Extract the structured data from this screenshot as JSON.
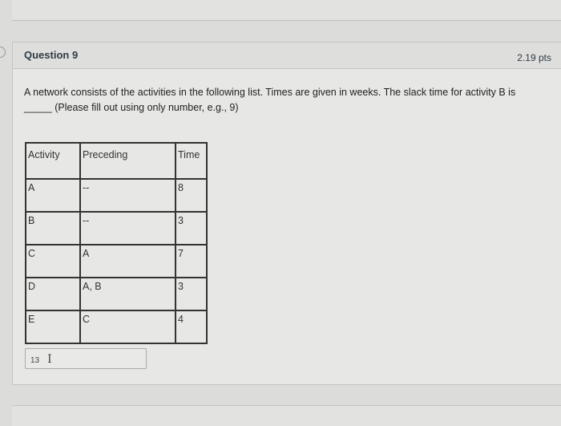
{
  "question": {
    "title": "Question 9",
    "points": "2.19 pts",
    "text_line1": "A network consists of the activities in the following list. Times are given in weeks. The slack time for activity B is",
    "text_line2": "_____ (Please fill out using only number, e.g., 9)"
  },
  "table": {
    "headers": [
      "Activity",
      "Preceding",
      "Time"
    ],
    "rows": [
      [
        "A",
        "--",
        "8"
      ],
      [
        "B",
        "--",
        "3"
      ],
      [
        "C",
        "A",
        "7"
      ],
      [
        "D",
        "A, B",
        "3"
      ],
      [
        "E",
        "C",
        "4"
      ]
    ]
  },
  "answer": {
    "value": "13"
  }
}
